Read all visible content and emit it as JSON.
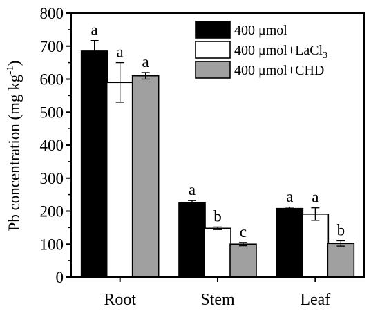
{
  "chart_data": {
    "type": "bar",
    "title": "",
    "xlabel": "",
    "ylabel": "Pb concentration (mg kg",
    "ylabel_sup": "-1",
    "ylabel_close": ")",
    "ylim": [
      0,
      800
    ],
    "yticks": [
      "0",
      "100",
      "200",
      "300",
      "400",
      "500",
      "600",
      "700",
      "800"
    ],
    "categories": [
      "Root",
      "Stem",
      "Leaf"
    ],
    "legend_position": "top-right",
    "series": [
      {
        "name": "400 μmol",
        "name_main": "400 μmol",
        "name_sub": "",
        "color": "#000000",
        "values": [
          685,
          225,
          208
        ],
        "errors": [
          32,
          7,
          4
        ],
        "letters": [
          "a",
          "a",
          "a"
        ]
      },
      {
        "name": "400 μmol+LaCl3",
        "name_main": "400 μmol+LaCl",
        "name_sub": "3",
        "color": "#ffffff",
        "values": [
          590,
          148,
          191
        ],
        "errors": [
          60,
          4,
          19
        ],
        "letters": [
          "a",
          "b",
          "a"
        ]
      },
      {
        "name": "400 μmol+CHD",
        "name_main": "400 μmol+CHD",
        "name_sub": "",
        "color": "#a0a0a0",
        "values": [
          610,
          100,
          102
        ],
        "errors": [
          10,
          5,
          8
        ],
        "letters": [
          "a",
          "c",
          "b"
        ]
      }
    ]
  }
}
